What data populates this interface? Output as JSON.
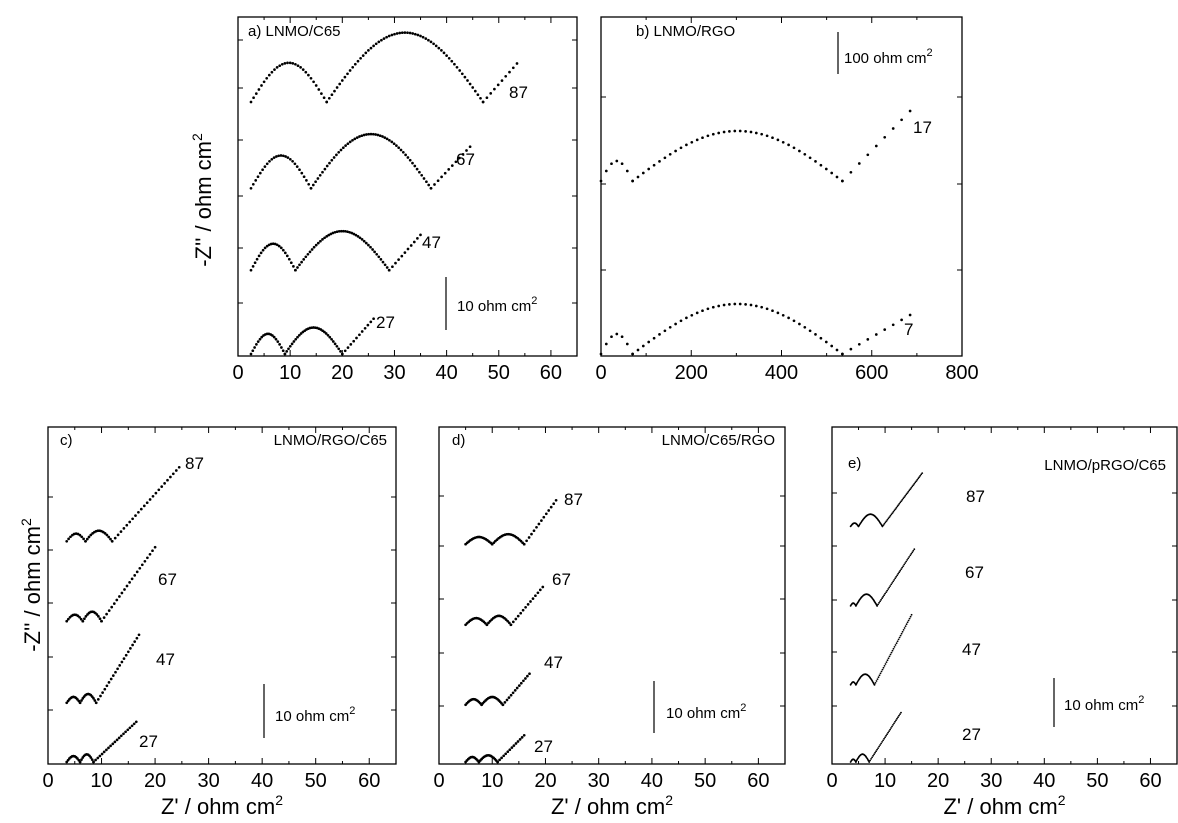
{
  "figure": {
    "shared_ylabel_top": "-Z'' / ohm cm",
    "shared_ylabel_bottom": "-Z'' / ohm cm",
    "exponent": "2"
  },
  "chart_data": [
    {
      "id": "a",
      "type": "scatter",
      "title": "a) LNMO/C65",
      "xlabel": "",
      "ylabel": "-Z'' / ohm cm2",
      "xlim": [
        0,
        65
      ],
      "xticks": [
        0,
        10,
        20,
        30,
        40,
        50,
        60
      ],
      "xtick_labels": [
        "0",
        "10",
        "20",
        "30",
        "40",
        "50",
        "60"
      ],
      "y_units_per_px": 0.1587,
      "scale_bar": {
        "label": "10 ohm cm",
        "exponent": "2",
        "value": 10
      },
      "series": [
        {
          "name": "27",
          "offset": 0,
          "r0": 2.5,
          "arcs": [
            [
              2.5,
              9,
              3.2
            ],
            [
              9,
              20,
              4.2
            ]
          ],
          "tail": [
            [
              20,
              0
            ],
            [
              26,
              5.6
            ]
          ],
          "point_every": 0.35
        },
        {
          "name": "47",
          "offset": 13.3,
          "r0": 2.5,
          "arcs": [
            [
              2.5,
              11,
              4.2
            ],
            [
              11,
              29,
              6.2
            ]
          ],
          "tail": [
            [
              29,
              0
            ],
            [
              35,
              5.6
            ]
          ],
          "point_every": 0.4
        },
        {
          "name": "67",
          "offset": 26.3,
          "r0": 2.5,
          "arcs": [
            [
              2.5,
              14,
              5.2
            ],
            [
              14,
              37,
              8.6
            ]
          ],
          "tail": [
            [
              37,
              0
            ],
            [
              44.5,
              6.6
            ]
          ],
          "point_every": 0.45
        },
        {
          "name": "87",
          "offset": 40.0,
          "r0": 2.5,
          "arcs": [
            [
              2.5,
              17,
              6.2
            ],
            [
              17,
              47,
              11.0
            ]
          ],
          "tail": [
            [
              47,
              0
            ],
            [
              53.5,
              6.1
            ]
          ],
          "point_every": 0.5
        }
      ]
    },
    {
      "id": "b",
      "type": "scatter",
      "title": "b) LNMO/RGO",
      "xlabel": "",
      "ylabel": "",
      "xlim": [
        0,
        800
      ],
      "xticks": [
        0,
        200,
        400,
        600,
        800
      ],
      "xtick_labels": [
        "0",
        "200",
        "400",
        "600",
        "800"
      ],
      "y_units_per_px": 2.0,
      "scale_bar": {
        "label": "100 ohm cm",
        "exponent": "2",
        "value": 100
      },
      "series": [
        {
          "name": "7",
          "offset": 0,
          "r0": 0,
          "arcs": [
            [
              0,
              70,
              40
            ],
            [
              70,
              535,
              100
            ]
          ],
          "tail": [
            [
              535,
              0
            ],
            [
              685,
              78
            ]
          ],
          "point_every": 12
        },
        {
          "name": "17",
          "offset": 346,
          "r0": 0,
          "arcs": [
            [
              0,
              70,
              40
            ],
            [
              70,
              535,
              100
            ]
          ],
          "tail": [
            [
              535,
              0
            ],
            [
              685,
              140
            ]
          ],
          "point_every": 12
        }
      ]
    },
    {
      "id": "c",
      "type": "scatter",
      "title": "LNMO/RGO/C65",
      "panel_letter": "c)",
      "xlabel": "Z' / ohm cm",
      "ylabel": "-Z'' / ohm cm2",
      "xlim": [
        0,
        65
      ],
      "xticks": [
        0,
        10,
        20,
        30,
        40,
        50,
        60
      ],
      "xtick_labels": [
        "0",
        "10",
        "20",
        "30",
        "40",
        "50",
        "60"
      ],
      "y_units_per_px": 0.169,
      "scale_bar": {
        "label": "10 ohm cm",
        "exponent": "2",
        "value": 10
      },
      "series": [
        {
          "name": "27",
          "offset": 0,
          "r0": 3.5,
          "arcs": [
            [
              3.5,
              6,
              1.0
            ],
            [
              6,
              8.5,
              1.3
            ]
          ],
          "tail": [
            [
              8.5,
              0
            ],
            [
              16.5,
              6.8
            ]
          ],
          "point_every": 0.25
        },
        {
          "name": "47",
          "offset": 10.0,
          "r0": 3.5,
          "arcs": [
            [
              3.5,
              6,
              1.0
            ],
            [
              6,
              9,
              1.5
            ]
          ],
          "tail": [
            [
              9,
              0
            ],
            [
              17,
              11.5
            ]
          ],
          "point_every": 0.25
        },
        {
          "name": "67",
          "offset": 23.8,
          "r0": 3.5,
          "arcs": [
            [
              3.5,
              6.5,
              1.1
            ],
            [
              6.5,
              10,
              1.6
            ]
          ],
          "tail": [
            [
              10,
              0
            ],
            [
              20,
              12.5
            ]
          ],
          "point_every": 0.3
        },
        {
          "name": "87",
          "offset": 37.3,
          "r0": 3.5,
          "arcs": [
            [
              3.5,
              7,
              1.3
            ],
            [
              7,
              12,
              1.8
            ]
          ],
          "tail": [
            [
              12,
              0
            ],
            [
              24.5,
              12.5
            ]
          ],
          "point_every": 0.35
        }
      ]
    },
    {
      "id": "d",
      "type": "scatter",
      "title": "LNMO/C65/RGO",
      "panel_letter": "d)",
      "xlabel": "Z' / ohm cm",
      "ylabel": "",
      "xlim": [
        0,
        65
      ],
      "xticks": [
        0,
        10,
        20,
        30,
        40,
        50,
        60
      ],
      "xtick_labels": [
        "0",
        "10",
        "20",
        "30",
        "40",
        "50",
        "60"
      ],
      "y_units_per_px": 0.18,
      "scale_bar": {
        "label": "10 ohm cm",
        "exponent": "2",
        "value": 10
      },
      "series": [
        {
          "name": "27",
          "offset": 0,
          "r0": 5,
          "arcs": [
            [
              5,
              7.5,
              0.9
            ],
            [
              7.5,
              11,
              1.2
            ]
          ],
          "tail": [
            [
              11,
              0
            ],
            [
              16,
              4.8
            ]
          ],
          "point_every": 0.25
        },
        {
          "name": "47",
          "offset": 10.3,
          "r0": 5,
          "arcs": [
            [
              5,
              8,
              1.0
            ],
            [
              8,
              12,
              1.4
            ]
          ],
          "tail": [
            [
              12,
              0
            ],
            [
              17,
              5.6
            ]
          ],
          "point_every": 0.25
        },
        {
          "name": "67",
          "offset": 24.7,
          "r0": 5,
          "arcs": [
            [
              5,
              9,
              1.2
            ],
            [
              9,
              13.5,
              1.6
            ]
          ],
          "tail": [
            [
              13.5,
              0
            ],
            [
              19.5,
              6.8
            ]
          ],
          "point_every": 0.3
        },
        {
          "name": "87",
          "offset": 39.2,
          "r0": 5,
          "arcs": [
            [
              5,
              10,
              1.3
            ],
            [
              10,
              16,
              1.8
            ]
          ],
          "tail": [
            [
              16,
              0
            ],
            [
              22,
              7.9
            ]
          ],
          "point_every": 0.3
        }
      ]
    },
    {
      "id": "e",
      "type": "scatter",
      "title": "LNMO/pRGO/C65",
      "panel_letter": "e)",
      "xlabel": "Z' / ohm cm",
      "ylabel": "",
      "xlim": [
        0,
        65
      ],
      "xticks": [
        0,
        10,
        20,
        30,
        40,
        50,
        60
      ],
      "xtick_labels": [
        "0",
        "10",
        "20",
        "30",
        "40",
        "50",
        "60"
      ],
      "y_units_per_px": 0.18,
      "scale_bar": {
        "label": "10 ohm cm",
        "exponent": "2",
        "value": 10
      },
      "series": [
        {
          "name": "27",
          "offset": 0,
          "r0": 3.5,
          "arcs": [
            [
              3.5,
              4.5,
              0.5
            ],
            [
              4.5,
              7,
              1.4
            ]
          ],
          "tail": [
            [
              7,
              0
            ],
            [
              13,
              8.9
            ]
          ],
          "point_every": 0.12
        },
        {
          "name": "47",
          "offset": 13.9,
          "r0": 3.5,
          "arcs": [
            [
              3.5,
              4.5,
              0.5
            ],
            [
              4.5,
              8,
              1.9
            ]
          ],
          "tail": [
            [
              8,
              0
            ],
            [
              15,
              12.6
            ]
          ],
          "point_every": 0.12
        },
        {
          "name": "67",
          "offset": 28.1,
          "r0": 3.5,
          "arcs": [
            [
              3.5,
              4.5,
              0.5
            ],
            [
              4.5,
              8.5,
              2.1
            ]
          ],
          "tail": [
            [
              8.5,
              0
            ],
            [
              15.5,
              10.2
            ]
          ],
          "point_every": 0.12
        },
        {
          "name": "87",
          "offset": 42.4,
          "r0": 3.5,
          "arcs": [
            [
              3.5,
              5,
              0.6
            ],
            [
              5,
              9.5,
              2.2
            ]
          ],
          "tail": [
            [
              9.5,
              0
            ],
            [
              17,
              9.6
            ]
          ],
          "point_every": 0.12
        }
      ]
    }
  ]
}
